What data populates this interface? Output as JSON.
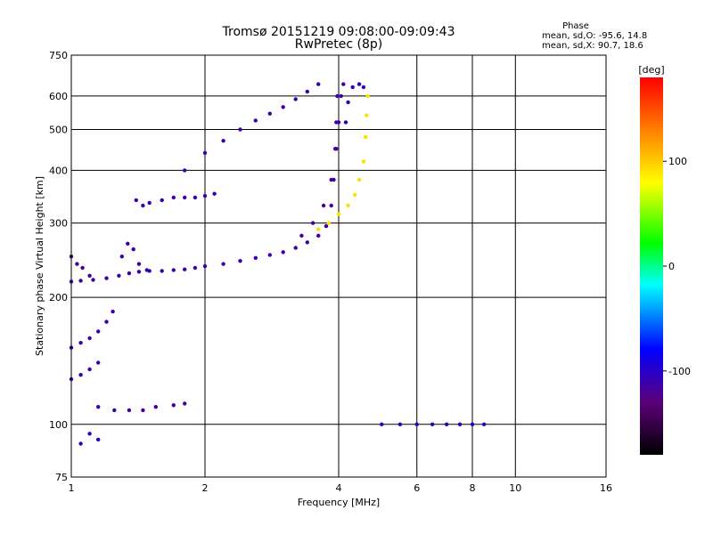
{
  "chart_data": {
    "type": "scatter",
    "title": "Tromsø 20151219 09:08:00-09:09:43",
    "subtitle": "RwPretec (8p)",
    "phase_stats": {
      "heading": "Phase",
      "o_line": "mean, sd,O: -95.6, 14.8",
      "x_line": "mean, sd,X:  90.7, 18.6"
    },
    "xlabel": "Frequency [MHz]",
    "ylabel": "Stationary phase Virtual Height [km]",
    "xscale": "log",
    "yscale": "log",
    "xlim": [
      1,
      16
    ],
    "ylim": [
      75,
      750
    ],
    "xticks": [
      1,
      2,
      4,
      6,
      8,
      10,
      16
    ],
    "yticks": [
      75,
      100,
      200,
      300,
      400,
      500,
      600,
      750
    ],
    "grid": true,
    "colorbar": {
      "label": "[deg]",
      "range": [
        -180,
        180
      ],
      "ticks": [
        100,
        0,
        -100
      ],
      "colormap": [
        "#000000",
        "#5c007a",
        "#0000ff",
        "#00ffff",
        "#00ff00",
        "#ffff00",
        "#ff8000",
        "#ff0000"
      ]
    },
    "traces": [
      {
        "name": "",
        "phase": -110,
        "points": [
          [
            1.0,
            218
          ],
          [
            1.05,
            219
          ],
          [
            1.12,
            220
          ],
          [
            1.2,
            222
          ],
          [
            1.28,
            225
          ],
          [
            1.35,
            228
          ],
          [
            1.42,
            230
          ],
          [
            1.5,
            231
          ],
          [
            1.6,
            231
          ],
          [
            1.7,
            232
          ],
          [
            1.8,
            233
          ],
          [
            1.9,
            235
          ],
          [
            2.0,
            237
          ],
          [
            2.2,
            240
          ],
          [
            2.4,
            244
          ],
          [
            2.6,
            248
          ],
          [
            2.8,
            252
          ],
          [
            3.0,
            256
          ],
          [
            3.2,
            262
          ],
          [
            3.4,
            270
          ],
          [
            3.6,
            280
          ],
          [
            3.75,
            295
          ],
          [
            3.85,
            330
          ],
          [
            3.9,
            380
          ],
          [
            3.93,
            450
          ],
          [
            3.95,
            520
          ],
          [
            3.97,
            600
          ]
        ]
      },
      {
        "name": "",
        "phase": -110,
        "points": [
          [
            1.3,
            250
          ],
          [
            1.34,
            268
          ],
          [
            1.38,
            260
          ],
          [
            1.42,
            240
          ],
          [
            1.48,
            232
          ]
        ]
      },
      {
        "name": "",
        "phase": -110,
        "points": [
          [
            1.8,
            400
          ],
          [
            2.0,
            440
          ],
          [
            2.2,
            470
          ],
          [
            2.4,
            500
          ],
          [
            2.6,
            525
          ],
          [
            2.8,
            545
          ],
          [
            3.0,
            565
          ],
          [
            3.2,
            590
          ],
          [
            3.4,
            615
          ],
          [
            3.6,
            640
          ]
        ]
      },
      {
        "name": "",
        "phase": -110,
        "points": [
          [
            1.4,
            340
          ],
          [
            1.45,
            330
          ],
          [
            1.5,
            335
          ],
          [
            1.6,
            340
          ],
          [
            1.7,
            345
          ],
          [
            1.8,
            345
          ],
          [
            1.9,
            345
          ],
          [
            2.0,
            348
          ],
          [
            2.1,
            352
          ]
        ]
      },
      {
        "name": "",
        "phase": -115,
        "points": [
          [
            3.3,
            280
          ],
          [
            3.5,
            300
          ],
          [
            3.7,
            330
          ],
          [
            3.85,
            380
          ],
          [
            3.95,
            450
          ],
          [
            4.0,
            520
          ],
          [
            4.05,
            600
          ],
          [
            4.1,
            640
          ]
        ]
      },
      {
        "name": "",
        "phase": -105,
        "points": [
          [
            4.15,
            520
          ],
          [
            4.2,
            580
          ],
          [
            4.3,
            630
          ],
          [
            4.45,
            640
          ],
          [
            4.55,
            630
          ]
        ]
      },
      {
        "name": "",
        "phase": 90,
        "points": [
          [
            3.6,
            290
          ],
          [
            3.8,
            300
          ],
          [
            4.0,
            315
          ],
          [
            4.2,
            330
          ],
          [
            4.35,
            350
          ],
          [
            4.45,
            380
          ],
          [
            4.55,
            420
          ],
          [
            4.6,
            480
          ],
          [
            4.62,
            540
          ],
          [
            4.65,
            600
          ]
        ]
      },
      {
        "name": "",
        "phase": -110,
        "points": [
          [
            1.15,
            110
          ],
          [
            1.25,
            108
          ],
          [
            1.35,
            108
          ],
          [
            1.45,
            108
          ],
          [
            1.55,
            110
          ],
          [
            1.7,
            111
          ],
          [
            1.8,
            112
          ]
        ]
      },
      {
        "name": "",
        "phase": -110,
        "points": [
          [
            1.0,
            128
          ],
          [
            1.05,
            131
          ],
          [
            1.1,
            135
          ],
          [
            1.15,
            140
          ]
        ]
      },
      {
        "name": "",
        "phase": -110,
        "points": [
          [
            1.0,
            152
          ],
          [
            1.05,
            156
          ],
          [
            1.1,
            160
          ],
          [
            1.15,
            166
          ],
          [
            1.2,
            175
          ],
          [
            1.24,
            185
          ]
        ]
      },
      {
        "name": "",
        "phase": -100,
        "points": [
          [
            5.0,
            100
          ],
          [
            5.5,
            100
          ],
          [
            6.0,
            100
          ],
          [
            6.5,
            100
          ],
          [
            7.0,
            100
          ],
          [
            7.5,
            100
          ],
          [
            8.0,
            100
          ],
          [
            8.5,
            100
          ]
        ]
      },
      {
        "name": "",
        "phase": -120,
        "points": [
          [
            1.0,
            250
          ],
          [
            1.03,
            240
          ],
          [
            1.06,
            235
          ],
          [
            1.1,
            225
          ]
        ]
      },
      {
        "name": "",
        "phase": -100,
        "points": [
          [
            1.05,
            90
          ],
          [
            1.1,
            95
          ],
          [
            1.15,
            92
          ]
        ]
      }
    ]
  }
}
